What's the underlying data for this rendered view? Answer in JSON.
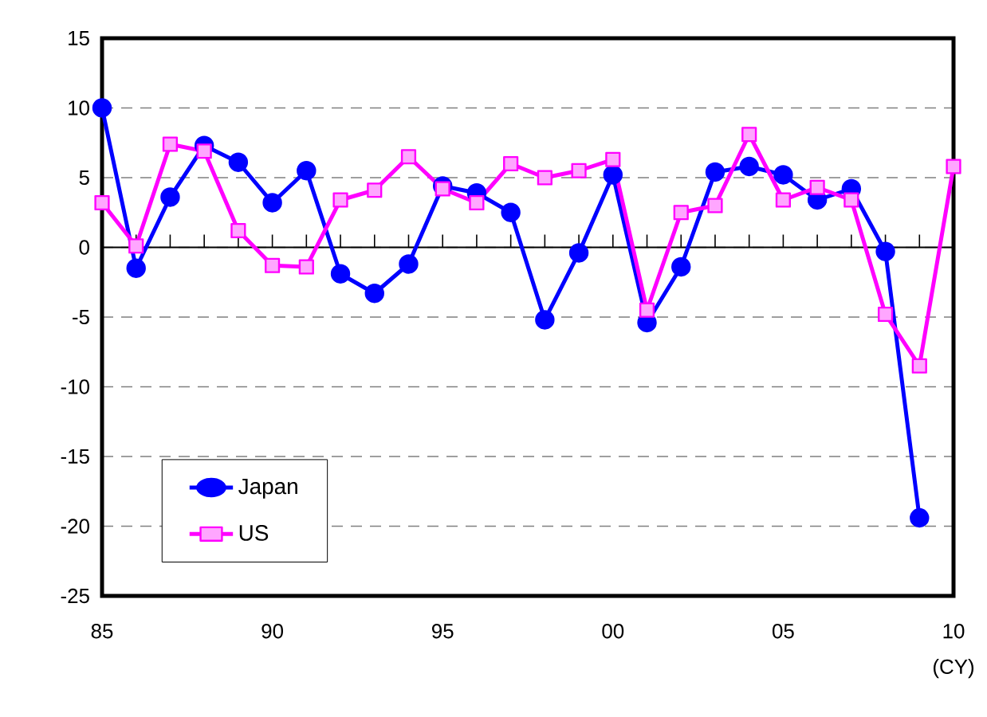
{
  "chart_data": {
    "type": "line",
    "xlabel": "(CY)",
    "x": [
      1985,
      1986,
      1987,
      1988,
      1989,
      1990,
      1991,
      1992,
      1993,
      1994,
      1995,
      1996,
      1997,
      1998,
      1999,
      2000,
      2001,
      2002,
      2003,
      2004,
      2005,
      2006,
      2007,
      2008,
      2009,
      2010
    ],
    "series": [
      {
        "name": "Japan",
        "color": "#0000ff",
        "marker": "circle",
        "values": [
          10,
          -1.5,
          3.6,
          7.3,
          6.1,
          3.2,
          5.5,
          -1.9,
          -3.3,
          -1.2,
          4.4,
          3.9,
          2.5,
          -5.2,
          -0.4,
          5.2,
          -5.4,
          -1.4,
          5.4,
          5.8,
          5.2,
          3.4,
          4.2,
          -0.3,
          -19.4,
          null
        ]
      },
      {
        "name": "US",
        "color": "#ff00ff",
        "marker": "square",
        "values": [
          3.2,
          0.1,
          7.4,
          6.9,
          1.2,
          -1.3,
          -1.4,
          3.4,
          4.1,
          6.5,
          4.2,
          3.2,
          6.0,
          5.0,
          5.5,
          6.3,
          -4.5,
          2.5,
          3.0,
          8.1,
          3.4,
          4.3,
          3.4,
          -4.8,
          -8.5,
          5.8
        ]
      }
    ],
    "xlim": [
      1985,
      2010
    ],
    "xticks": [
      {
        "value": 1985,
        "label": "85"
      },
      {
        "value": 1986,
        "label": null
      },
      {
        "value": 1987,
        "label": null
      },
      {
        "value": 1988,
        "label": null
      },
      {
        "value": 1989,
        "label": null
      },
      {
        "value": 1990,
        "label": "90"
      },
      {
        "value": 1991,
        "label": null
      },
      {
        "value": 1992,
        "label": null
      },
      {
        "value": 1993,
        "label": null
      },
      {
        "value": 1994,
        "label": null
      },
      {
        "value": 1995,
        "label": "95"
      },
      {
        "value": 1996,
        "label": null
      },
      {
        "value": 1997,
        "label": null
      },
      {
        "value": 1998,
        "label": null
      },
      {
        "value": 1999,
        "label": null
      },
      {
        "value": 2000,
        "label": "00"
      },
      {
        "value": 2001,
        "label": null
      },
      {
        "value": 2002,
        "label": null
      },
      {
        "value": 2003,
        "label": null
      },
      {
        "value": 2004,
        "label": null
      },
      {
        "value": 2005,
        "label": "05"
      },
      {
        "value": 2006,
        "label": null
      },
      {
        "value": 2007,
        "label": null
      },
      {
        "value": 2008,
        "label": null
      },
      {
        "value": 2009,
        "label": null
      },
      {
        "value": 2010,
        "label": "10"
      }
    ],
    "ylim": [
      -25,
      15
    ],
    "yticks": [
      -25,
      -20,
      -15,
      -10,
      -5,
      0,
      5,
      10,
      15
    ],
    "ref_lines": [
      {
        "axis": "y",
        "value": 0,
        "color": "#000000"
      }
    ],
    "grid": "y",
    "legend": "bottom left",
    "line_style": "solid"
  }
}
